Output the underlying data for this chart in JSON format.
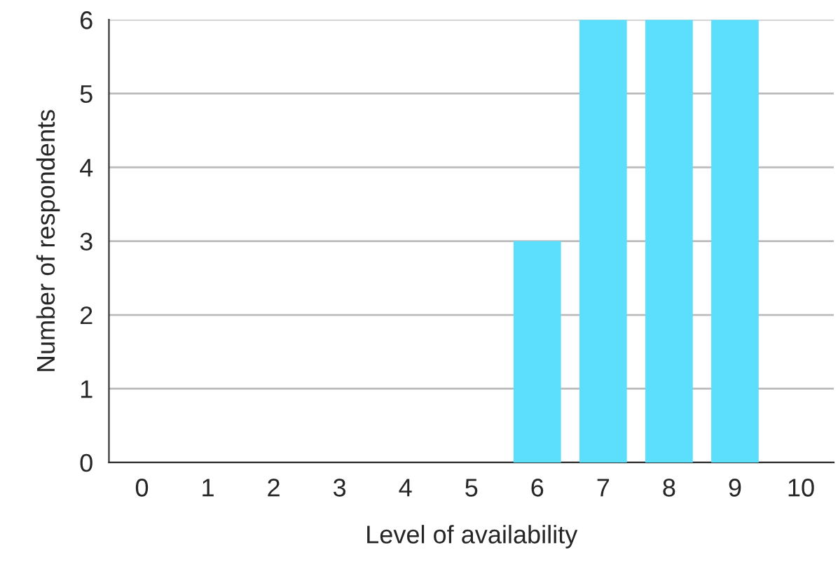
{
  "chart_data": {
    "type": "bar",
    "xlabel": "Level of availability",
    "ylabel": "Number of respondents",
    "categories": [
      "0",
      "1",
      "2",
      "3",
      "4",
      "5",
      "6",
      "7",
      "8",
      "9",
      "10"
    ],
    "values": [
      0,
      0,
      0,
      0,
      0,
      0,
      3,
      6,
      6,
      6,
      0
    ],
    "color": "#5cdffd",
    "ylim": [
      0,
      6
    ],
    "yticks": [
      0,
      1,
      2,
      3,
      4,
      5,
      6
    ],
    "grid": "y"
  }
}
